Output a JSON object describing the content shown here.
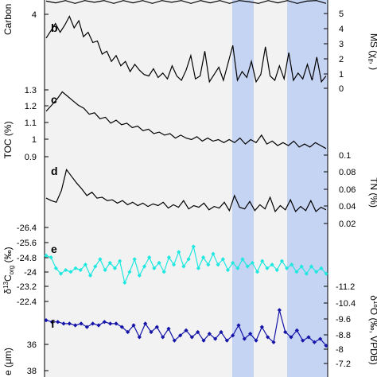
{
  "colors": {
    "shade": "#f2f2f2",
    "band": "#c6d4f3",
    "black": "#000000",
    "cyan": "#20e8e0",
    "blue": "#1414a8"
  },
  "chart_data": [
    {
      "panel": "a",
      "type": "line",
      "ylabel": "Carbon",
      "yticks_left": [
        4
      ],
      "yticks_right": [],
      "ylim": [
        3.4,
        4.8
      ],
      "values": [
        4.6,
        4.3,
        4.7,
        4.2,
        4.7,
        4.4,
        4.7,
        4.2,
        4.7,
        4.3,
        4.7,
        4.2,
        4.7,
        4.4,
        4.7,
        4.2,
        4.7,
        4.3,
        4.7,
        4.2,
        4.7,
        4.5,
        4.2,
        4.7,
        4.3,
        4.7,
        4.2,
        4.6,
        4.7,
        4.2
      ]
    },
    {
      "panel": "b",
      "type": "line",
      "ylabel": "MS (χlf, )",
      "yticks_left": [],
      "yticks_right": [
        5,
        4,
        3,
        2,
        1,
        0
      ],
      "ylim": [
        0,
        5.3
      ],
      "values": [
        3.5,
        4.0,
        4.5,
        3.9,
        4.4,
        5.0,
        4.2,
        4.7,
        3.6,
        3.9,
        3.2,
        3.3,
        2.4,
        2.6,
        1.9,
        2.3,
        1.6,
        1.9,
        1.2,
        1.7,
        1.3,
        1.0,
        0.9,
        1.4,
        0.8,
        1.1,
        0.7,
        1.6,
        0.9,
        0.6,
        1.3,
        2.3,
        0.7,
        0.9,
        2.6,
        0.5,
        1.0,
        1.5,
        0.6,
        1.8,
        3.0,
        0.6,
        1.2,
        0.8,
        1.9,
        0.5,
        1.0,
        2.9,
        0.9,
        0.6,
        1.6,
        0.7,
        2.5,
        0.6,
        1.1,
        0.7,
        1.7,
        0.6,
        2.2,
        0.5,
        0.9
      ]
    },
    {
      "panel": "c",
      "type": "line",
      "ylabel": "TOC (%)",
      "yticks_left": [
        1.3,
        1.2,
        1.1,
        1,
        0.9
      ],
      "yticks_right": [
        0.1,
        0.08,
        0.06,
        0.04,
        0.02
      ],
      "right_axis_label": "TN (%)",
      "ylim": [
        0.87,
        1.35
      ],
      "values": [
        1.18,
        1.22,
        1.26,
        1.31,
        1.28,
        1.25,
        1.22,
        1.2,
        1.16,
        1.17,
        1.13,
        1.14,
        1.1,
        1.12,
        1.09,
        1.1,
        1.07,
        1.08,
        1.05,
        1.06,
        1.03,
        1.04,
        1.02,
        1.03,
        1.0,
        1.02,
        1.0,
        0.99,
        1.01,
        0.98,
        1.0,
        0.98,
        0.99,
        0.97,
        0.99,
        0.97,
        1.0,
        0.96,
        0.99,
        0.97,
        1.02,
        0.96,
        0.98,
        0.95,
        0.97,
        0.95,
        0.98,
        0.94,
        0.96,
        0.94,
        0.97,
        0.95,
        0.93
      ]
    },
    {
      "panel": "d",
      "type": "line",
      "ylabel": "TN (%)",
      "ylim": [
        0.01,
        0.11
      ],
      "values": [
        0.049,
        0.046,
        0.044,
        0.058,
        0.083,
        0.075,
        0.067,
        0.06,
        0.052,
        0.056,
        0.049,
        0.05,
        0.046,
        0.047,
        0.043,
        0.046,
        0.041,
        0.044,
        0.04,
        0.043,
        0.039,
        0.042,
        0.04,
        0.044,
        0.037,
        0.041,
        0.038,
        0.046,
        0.036,
        0.04,
        0.038,
        0.043,
        0.035,
        0.039,
        0.037,
        0.044,
        0.034,
        0.052,
        0.038,
        0.036,
        0.045,
        0.034,
        0.041,
        0.036,
        0.05,
        0.033,
        0.04,
        0.035,
        0.047,
        0.033,
        0.039,
        0.034,
        0.046,
        0.033,
        0.038,
        0.035
      ]
    },
    {
      "panel": "e",
      "type": "line",
      "ylabel": "δ13Corg (‰)",
      "yticks_left": [
        -26.4,
        -25.6,
        -24.8,
        -24,
        -23.2,
        -22.4
      ],
      "yticks_right": [
        -11.2,
        -10.4,
        -9.6,
        -8.8,
        -8,
        -7.2
      ],
      "right_axis_label": "δ18O (‰, VPDB)",
      "ylim": [
        -26.7,
        -22.3
      ],
      "values": [
        -25.1,
        -25.0,
        -24.4,
        -24.1,
        -24.3,
        -24.2,
        -24.4,
        -24.3,
        -24.6,
        -24.0,
        -24.5,
        -24.9,
        -24.3,
        -24.7,
        -24.4,
        -24.8,
        -23.6,
        -24.2,
        -24.9,
        -24.0,
        -24.5,
        -25.0,
        -24.4,
        -24.7,
        -24.2,
        -25.0,
        -24.6,
        -25.3,
        -24.5,
        -24.9,
        -25.6,
        -24.4,
        -25.0,
        -24.6,
        -25.2,
        -24.6,
        -24.9,
        -24.3,
        -24.7,
        -24.4,
        -24.9,
        -24.5,
        -24.7,
        -24.2,
        -24.8,
        -24.4,
        -24.6,
        -24.3,
        -24.8,
        -24.4,
        -24.6,
        -24.2,
        -24.5,
        -24.1,
        -24.5,
        -24.2,
        -24.4,
        -24.1
      ]
    },
    {
      "panel": "f",
      "type": "line",
      "ylabel": "δ18O (‰, VPDB)",
      "ylim": [
        -11.6,
        -7.0
      ],
      "values": [
        -9.6,
        -9.5,
        -9.5,
        -9.4,
        -9.4,
        -9.3,
        -9.4,
        -9.2,
        -9.4,
        -9.3,
        -9.5,
        -9.4,
        -9.4,
        -9.2,
        -8.9,
        -9.3,
        -8.6,
        -9.4,
        -8.9,
        -9.2,
        -8.6,
        -9.1,
        -8.4,
        -8.7,
        -9.0,
        -8.6,
        -8.9,
        -8.4,
        -8.8,
        -8.5,
        -8.9,
        -8.4,
        -8.7,
        -9.3,
        -8.5,
        -8.8,
        -8.4,
        -9.2,
        -8.6,
        -8.3,
        -10.2,
        -8.9,
        -8.6,
        -9.0,
        -8.4,
        -8.6,
        -8.3,
        -8.5,
        -8.1
      ]
    },
    {
      "panel": "g",
      "type": "line",
      "ylabel": "e (μm)",
      "yticks_left": [
        36,
        38
      ],
      "values": []
    }
  ],
  "panel_letters": [
    "b",
    "c",
    "d",
    "e",
    "f"
  ],
  "labels": {
    "carbon": "Carbon",
    "toc": "TOC (%)",
    "tn": "TN (%)",
    "ms_main": "MS (χ",
    "ms_sub": "lf",
    "ms_end": ", )",
    "d13c_delta": "δ",
    "d13c_sup": "13",
    "d13c_c": "C",
    "d13c_sub": "org",
    "d13c_end": " (‰)",
    "d18o_delta": "δ",
    "d18o_sup": "18",
    "d18o_end": "O (‰, VPDB)",
    "grain": "e (μm)"
  },
  "tick_labels": {
    "a_left": [
      "4"
    ],
    "b_right": [
      "5",
      "4",
      "3",
      "2",
      "1",
      "0"
    ],
    "c_left": [
      "1.3",
      "1.2",
      "1.1",
      "1",
      "0.9"
    ],
    "tn_right": [
      "0.1",
      "0.08",
      "0.06",
      "0.04",
      "0.02"
    ],
    "e_left": [
      "-26.4",
      "-25.6",
      "-24.8",
      "-24",
      "-23.2",
      "-22.4"
    ],
    "o_right": [
      "-11.2",
      "-10.4",
      "-9.6",
      "-8.8",
      "-8",
      "-7.2"
    ],
    "g_left": [
      "36",
      "38"
    ]
  }
}
